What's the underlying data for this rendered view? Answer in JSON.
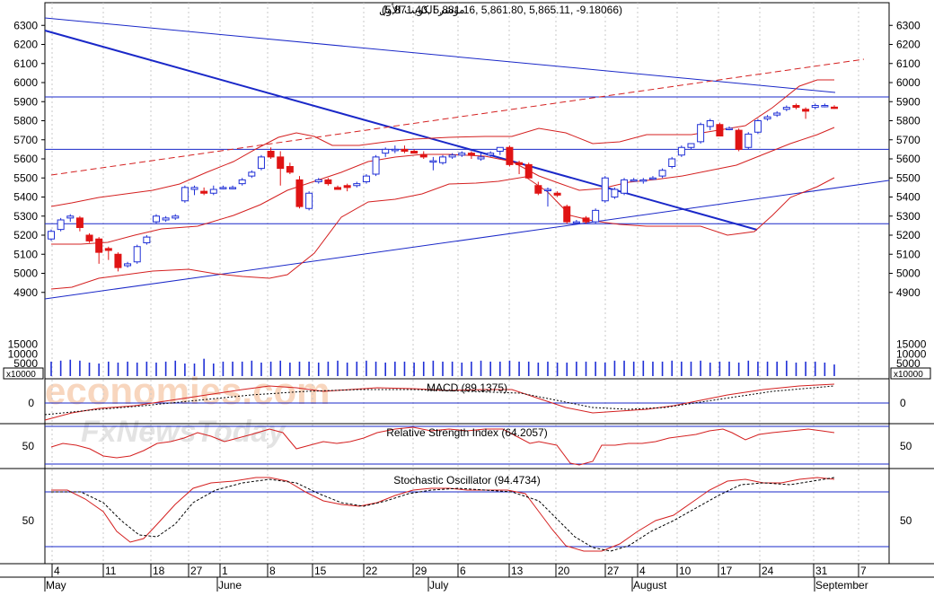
{
  "header": {
    "title": "مؤشر الكويت الأول",
    "ohlc": "(5,871.40, 5,881.16, 5,861.80, 5,865.11, -9.18066)"
  },
  "price_axis": {
    "ticks": [
      "4900",
      "5000",
      "5100",
      "5200",
      "5300",
      "5400",
      "5500",
      "5600",
      "5700",
      "5800",
      "5900",
      "6000",
      "6100",
      "6200",
      "6300"
    ]
  },
  "volume_axis": {
    "ticks": [
      "5000",
      "10000",
      "15000"
    ],
    "unit_label": "x10000"
  },
  "macd_axis": {
    "ticks": [
      "0"
    ]
  },
  "rsi_axis": {
    "ticks": [
      "50"
    ]
  },
  "stoch_axis": {
    "ticks": [
      "50"
    ]
  },
  "panel_titles": {
    "macd": "MACD (89.1375)",
    "rsi": "Relative Strength Index (64.2057)",
    "stoch": "Stochastic Oscillator (94.4734)"
  },
  "date_axis": {
    "days": [
      "4",
      "11",
      "18",
      "27",
      "1",
      "8",
      "15",
      "22",
      "29",
      "6",
      "13",
      "20",
      "27",
      "4",
      "10",
      "17",
      "24",
      "31",
      "7"
    ],
    "months": [
      "May",
      "June",
      "July",
      "August",
      "September"
    ]
  },
  "watermark": {
    "line1": "economies.com",
    "line2": "FxNewsToday"
  },
  "colors": {
    "up_candle": "#1f2fd6",
    "down_candle": "#e01414",
    "bollinger": "#d42020",
    "trendline": "#1a28c8",
    "signal_dashed": "#000000",
    "grid": "#c8c8c8"
  },
  "chart_data": {
    "type": "candlestick",
    "title": "مؤشر الكويت الأول",
    "ylim": [
      4850,
      6350
    ],
    "candles": [
      [
        5180,
        5230,
        5170,
        5220
      ],
      [
        5230,
        5290,
        5220,
        5280
      ],
      [
        5290,
        5310,
        5270,
        5300
      ],
      [
        5290,
        5300,
        5220,
        5240
      ],
      [
        5200,
        5210,
        5160,
        5170
      ],
      [
        5180,
        5190,
        5050,
        5110
      ],
      [
        5130,
        5140,
        5070,
        5120
      ],
      [
        5100,
        5110,
        5010,
        5030
      ],
      [
        5040,
        5060,
        5030,
        5050
      ],
      [
        5060,
        5150,
        5050,
        5140
      ],
      [
        5160,
        5200,
        5150,
        5190
      ],
      [
        5270,
        5310,
        5260,
        5300
      ],
      [
        5280,
        5300,
        5270,
        5290
      ],
      [
        5290,
        5310,
        5280,
        5300
      ],
      [
        5380,
        5460,
        5370,
        5450
      ],
      [
        5440,
        5460,
        5410,
        5450
      ],
      [
        5430,
        5450,
        5410,
        5420
      ],
      [
        5420,
        5460,
        5410,
        5440
      ],
      [
        5450,
        5460,
        5440,
        5450
      ],
      [
        5450,
        5460,
        5440,
        5450
      ],
      [
        5470,
        5500,
        5460,
        5490
      ],
      [
        5510,
        5540,
        5500,
        5530
      ],
      [
        5550,
        5620,
        5540,
        5610
      ],
      [
        5640,
        5660,
        5600,
        5610
      ],
      [
        5610,
        5640,
        5460,
        5550
      ],
      [
        5560,
        5580,
        5520,
        5530
      ],
      [
        5490,
        5510,
        5340,
        5350
      ],
      [
        5340,
        5430,
        5330,
        5420
      ],
      [
        5480,
        5500,
        5470,
        5490
      ],
      [
        5490,
        5500,
        5460,
        5470
      ],
      [
        5450,
        5460,
        5440,
        5440
      ],
      [
        5460,
        5470,
        5430,
        5450
      ],
      [
        5460,
        5480,
        5450,
        5470
      ],
      [
        5480,
        5520,
        5470,
        5510
      ],
      [
        5520,
        5620,
        5510,
        5610
      ],
      [
        5630,
        5660,
        5610,
        5650
      ],
      [
        5650,
        5670,
        5630,
        5650
      ],
      [
        5650,
        5670,
        5630,
        5640
      ],
      [
        5640,
        5650,
        5630,
        5630
      ],
      [
        5620,
        5640,
        5600,
        5610
      ],
      [
        5590,
        5610,
        5540,
        5590
      ],
      [
        5580,
        5620,
        5570,
        5610
      ],
      [
        5610,
        5630,
        5600,
        5620
      ],
      [
        5620,
        5640,
        5610,
        5630
      ],
      [
        5630,
        5640,
        5600,
        5620
      ],
      [
        5600,
        5630,
        5590,
        5610
      ],
      [
        5620,
        5640,
        5610,
        5630
      ],
      [
        5640,
        5660,
        5620,
        5660
      ],
      [
        5660,
        5670,
        5560,
        5570
      ],
      [
        5580,
        5590,
        5520,
        5570
      ],
      [
        5570,
        5580,
        5500,
        5500
      ],
      [
        5460,
        5480,
        5410,
        5420
      ],
      [
        5440,
        5450,
        5350,
        5440
      ],
      [
        5420,
        5430,
        5400,
        5410
      ],
      [
        5350,
        5360,
        5260,
        5270
      ],
      [
        5270,
        5280,
        5260,
        5270
      ],
      [
        5290,
        5300,
        5260,
        5270
      ],
      [
        5270,
        5340,
        5260,
        5330
      ],
      [
        5380,
        5510,
        5370,
        5500
      ],
      [
        5400,
        5450,
        5390,
        5440
      ],
      [
        5420,
        5500,
        5410,
        5490
      ],
      [
        5490,
        5500,
        5480,
        5490
      ],
      [
        5490,
        5500,
        5470,
        5490
      ],
      [
        5500,
        5510,
        5490,
        5500
      ],
      [
        5510,
        5550,
        5500,
        5540
      ],
      [
        5560,
        5610,
        5550,
        5600
      ],
      [
        5620,
        5670,
        5610,
        5660
      ],
      [
        5660,
        5680,
        5650,
        5680
      ],
      [
        5690,
        5790,
        5680,
        5780
      ],
      [
        5770,
        5810,
        5750,
        5800
      ],
      [
        5780,
        5790,
        5720,
        5720
      ],
      [
        5760,
        5770,
        5750,
        5760
      ],
      [
        5750,
        5760,
        5640,
        5650
      ],
      [
        5660,
        5740,
        5650,
        5730
      ],
      [
        5740,
        5810,
        5730,
        5800
      ],
      [
        5810,
        5830,
        5800,
        5820
      ],
      [
        5830,
        5850,
        5820,
        5840
      ],
      [
        5860,
        5880,
        5850,
        5870
      ],
      [
        5880,
        5890,
        5860,
        5870
      ],
      [
        5860,
        5870,
        5810,
        5850
      ],
      [
        5870,
        5890,
        5860,
        5880
      ],
      [
        5880,
        5890,
        5870,
        5880
      ],
      [
        5871.4,
        5881.16,
        5861.8,
        5865.11
      ]
    ],
    "volume": [
      3,
      3.5,
      4,
      3.5,
      2.5,
      2,
      3,
      2.5,
      3,
      2.5,
      3,
      2.5,
      3,
      3.5,
      2,
      2,
      4.5,
      2,
      3,
      3,
      3,
      3.5,
      2.5,
      3,
      3.5,
      2.5,
      3,
      3,
      2.5,
      3,
      3.5,
      2.5,
      3,
      3.5,
      3,
      2.5,
      3,
      3,
      2.5,
      3,
      3.5,
      3,
      3,
      2.5,
      3,
      3.5,
      3,
      3,
      3.5,
      3,
      3,
      2.5,
      3,
      2.5,
      2.5,
      3,
      3,
      3,
      2.5,
      3.5,
      3.5,
      3,
      3.5,
      3,
      3,
      3.5,
      3,
      3,
      3.5,
      2.5,
      3,
      3,
      2.5,
      3.5,
      3,
      3,
      3,
      3.5,
      2.5,
      3,
      3,
      2.5,
      1.5
    ],
    "series": []
  }
}
